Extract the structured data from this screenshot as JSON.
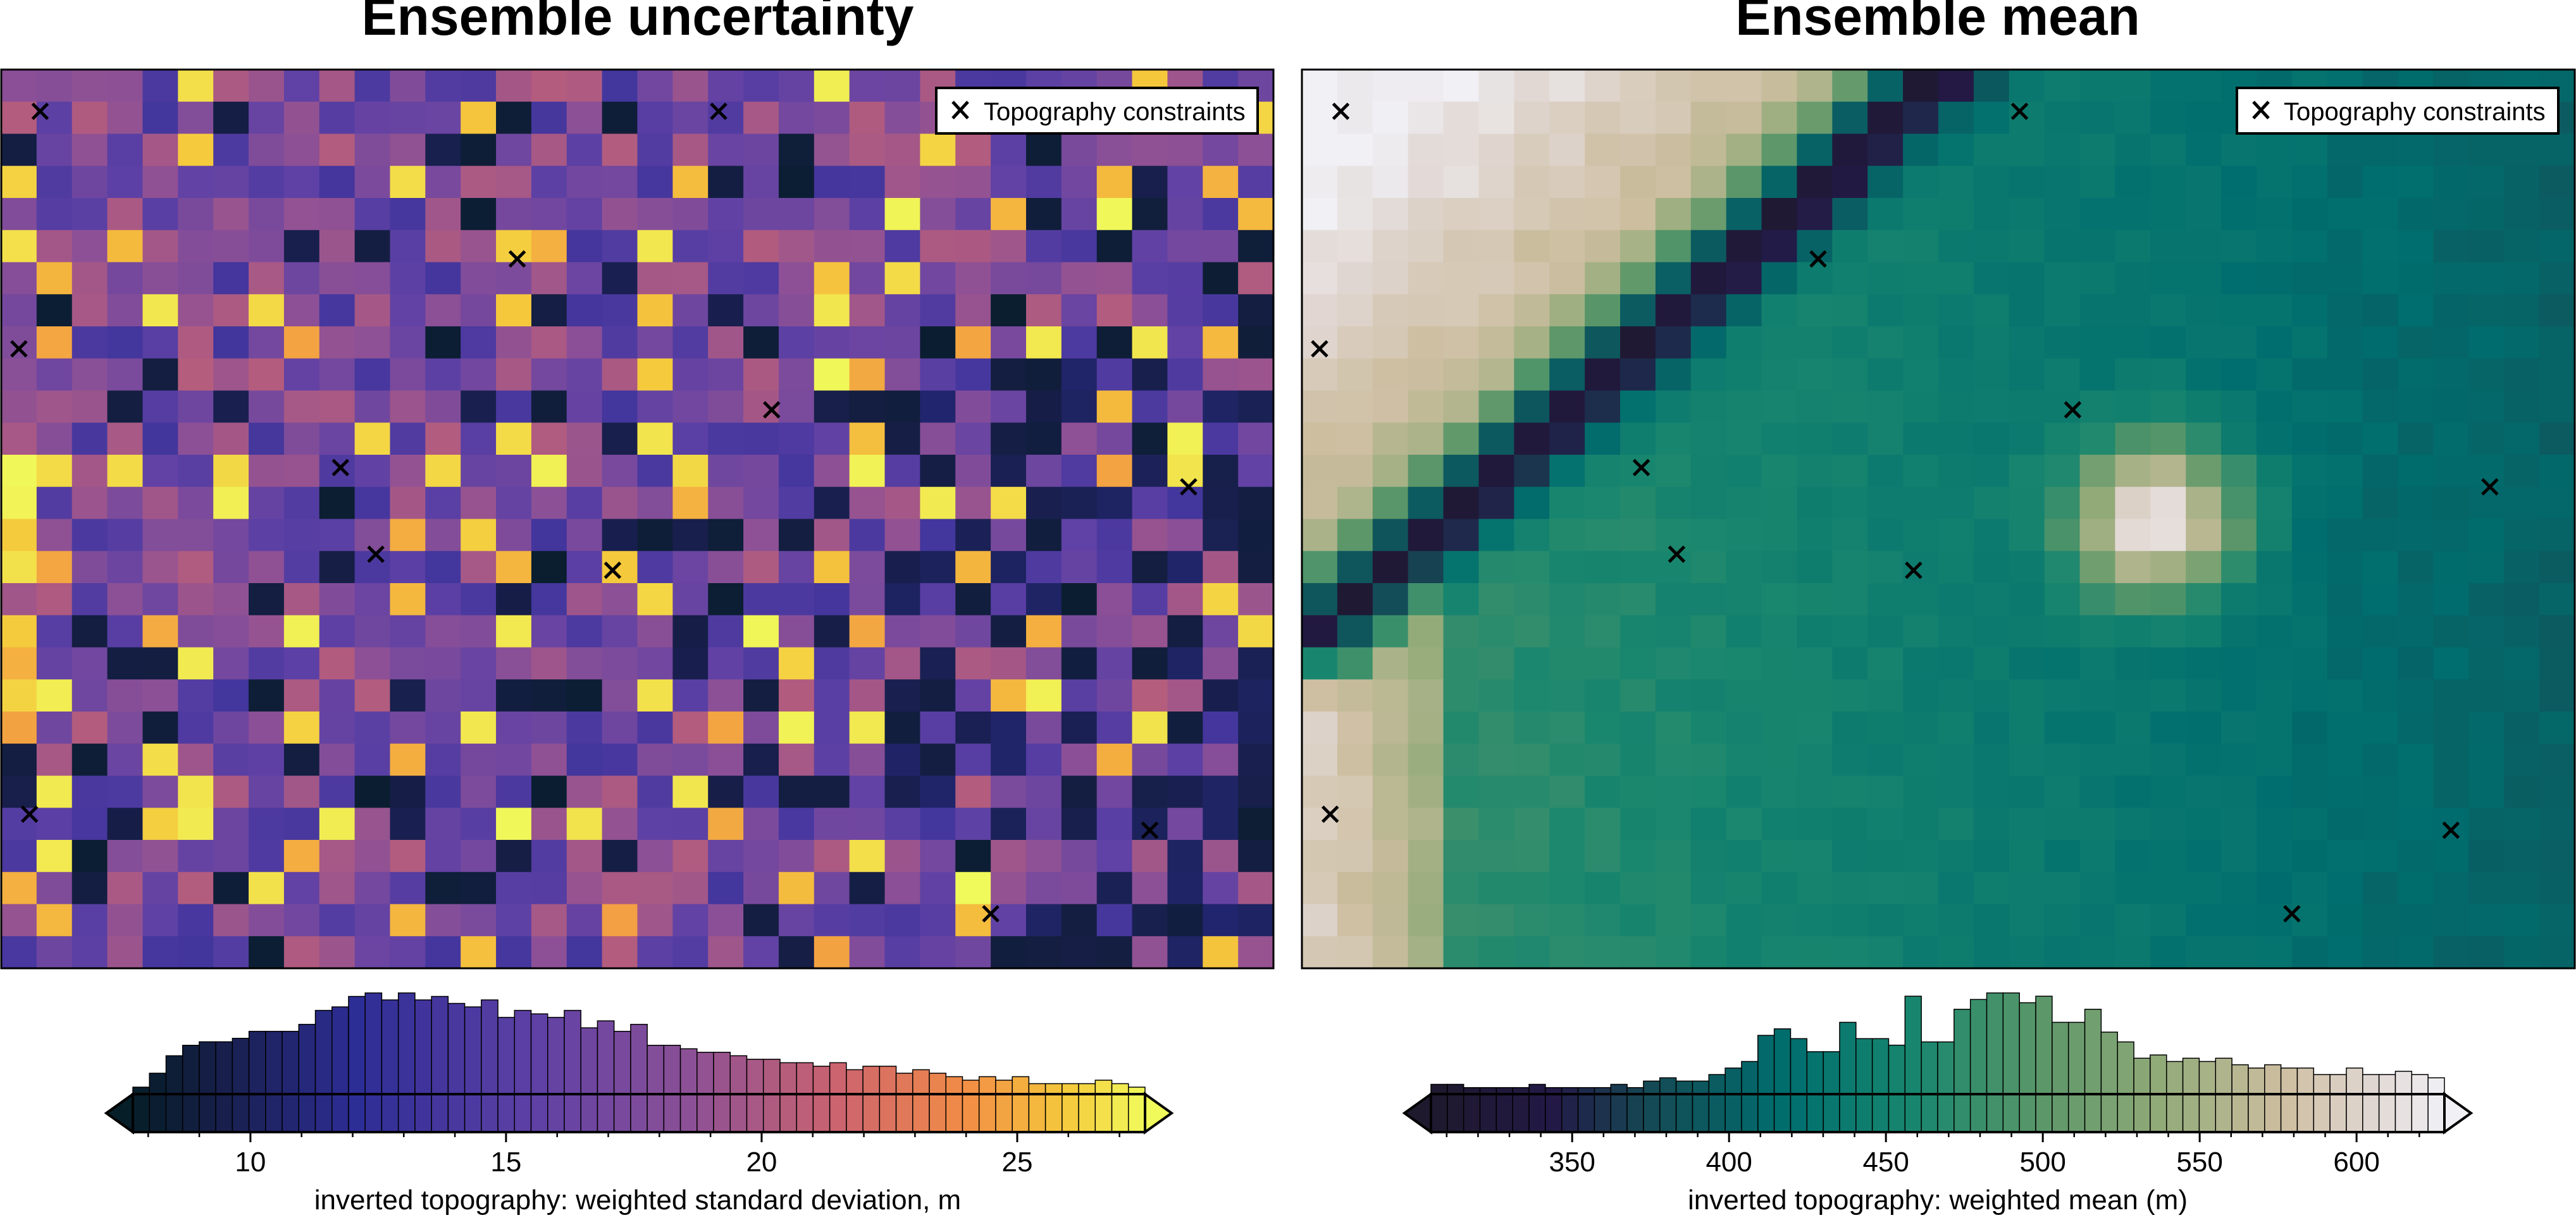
{
  "panels": [
    {
      "title": "Ensemble uncertainty",
      "legend_label": "Topography constraints",
      "colormap": "plasma",
      "cbar_label": "inverted topography: weighted standard deviation, m",
      "cbar_ticks": [
        10,
        15,
        20,
        25
      ],
      "cbar_range": [
        7.7,
        27.5
      ],
      "cbar_extend": "both",
      "histogram": [
        2,
        6,
        11,
        14,
        15,
        15,
        16,
        18,
        18,
        18,
        20,
        24,
        25,
        28,
        29,
        27,
        29,
        27,
        28,
        26,
        25,
        27,
        22,
        24,
        23,
        22,
        24,
        19,
        21,
        18,
        20,
        14,
        14,
        13,
        12,
        12,
        11,
        10,
        10,
        9,
        9,
        8,
        9,
        7,
        8,
        8,
        6,
        7,
        6,
        5,
        4,
        5,
        4,
        5,
        3,
        3,
        3,
        3,
        4,
        3,
        2
      ],
      "grid_mode": "random"
    },
    {
      "title": "Ensemble mean",
      "legend_label": "Topography constraints",
      "colormap": "rain_r",
      "cbar_label": "inverted topography: weighted mean (m)",
      "cbar_ticks": [
        350,
        400,
        450,
        500,
        550,
        600
      ],
      "cbar_range": [
        305,
        628
      ],
      "cbar_extend": "both",
      "histogram": [
        3,
        3,
        2,
        2,
        2,
        2,
        3,
        2,
        2,
        2,
        2,
        3,
        2,
        4,
        5,
        4,
        4,
        6,
        8,
        10,
        18,
        20,
        17,
        13,
        13,
        22,
        17,
        17,
        15,
        30,
        16,
        16,
        26,
        29,
        31,
        31,
        28,
        30,
        22,
        22,
        26,
        19,
        16,
        11,
        12,
        10,
        11,
        10,
        11,
        9,
        8,
        9,
        8,
        8,
        6,
        6,
        8,
        6,
        6,
        7,
        6,
        5
      ],
      "grid_mode": "smooth"
    }
  ],
  "constraints": [
    {
      "x": 1.1,
      "y": 1.3
    },
    {
      "x": 20.3,
      "y": 1.3
    },
    {
      "x": 14.6,
      "y": 5.9
    },
    {
      "x": 0.5,
      "y": 8.7
    },
    {
      "x": 21.8,
      "y": 10.6
    },
    {
      "x": 9.6,
      "y": 12.4
    },
    {
      "x": 33.6,
      "y": 13.0
    },
    {
      "x": 10.6,
      "y": 15.1
    },
    {
      "x": 17.3,
      "y": 15.6
    },
    {
      "x": 0.8,
      "y": 23.2
    },
    {
      "x": 32.5,
      "y": 23.7
    },
    {
      "x": 28.0,
      "y": 26.3
    }
  ],
  "chart_data": [
    {
      "type": "heatmap",
      "title": "Ensemble uncertainty",
      "colorbar_label": "inverted topography: weighted standard deviation, m",
      "colorbar_ticks": [
        10,
        15,
        20,
        25
      ],
      "colorbar_range": [
        7.7,
        27.5
      ],
      "legend": "Topography constraints",
      "legend_placement": "top-right"
    },
    {
      "type": "heatmap",
      "title": "Ensemble mean",
      "colorbar_label": "inverted topography: weighted mean (m)",
      "colorbar_ticks": [
        350,
        400,
        450,
        500,
        550,
        600
      ],
      "colorbar_range": [
        305,
        628
      ],
      "legend": "Topography constraints",
      "legend_placement": "top-right"
    }
  ]
}
